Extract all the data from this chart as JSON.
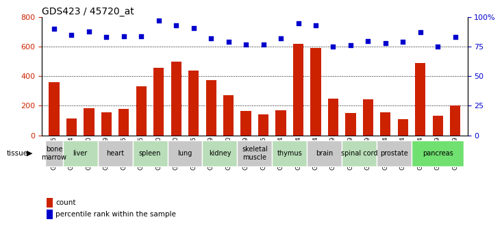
{
  "title": "GDS423 / 45720_at",
  "gsm_ids": [
    "GSM12635",
    "GSM12724",
    "GSM12640",
    "GSM12719",
    "GSM12645",
    "GSM12665",
    "GSM12650",
    "GSM12670",
    "GSM12655",
    "GSM12699",
    "GSM12660",
    "GSM12729",
    "GSM12675",
    "GSM12694",
    "GSM12684",
    "GSM12714",
    "GSM12689",
    "GSM12709",
    "GSM12679",
    "GSM12704",
    "GSM12734",
    "GSM12744",
    "GSM12739",
    "GSM12749"
  ],
  "counts": [
    360,
    115,
    185,
    155,
    180,
    330,
    455,
    500,
    440,
    375,
    270,
    165,
    140,
    170,
    620,
    590,
    250,
    150,
    245,
    155,
    110,
    490,
    130,
    200
  ],
  "percentiles": [
    90,
    85,
    88,
    83,
    84,
    84,
    97,
    93,
    91,
    82,
    79,
    77,
    77,
    82,
    95,
    93,
    75,
    76,
    80,
    78,
    79,
    87,
    75,
    83
  ],
  "tissues": [
    {
      "name": "bone\nmarrow",
      "count": 1,
      "color": "#c8c8c8"
    },
    {
      "name": "liver",
      "count": 2,
      "color": "#b8ddb8"
    },
    {
      "name": "heart",
      "count": 2,
      "color": "#c8c8c8"
    },
    {
      "name": "spleen",
      "count": 2,
      "color": "#b8ddb8"
    },
    {
      "name": "lung",
      "count": 2,
      "color": "#c8c8c8"
    },
    {
      "name": "kidney",
      "count": 2,
      "color": "#b8ddb8"
    },
    {
      "name": "skeletal\nmuscle",
      "count": 2,
      "color": "#c8c8c8"
    },
    {
      "name": "thymus",
      "count": 2,
      "color": "#b8ddb8"
    },
    {
      "name": "brain",
      "count": 2,
      "color": "#c8c8c8"
    },
    {
      "name": "spinal cord",
      "count": 2,
      "color": "#b8ddb8"
    },
    {
      "name": "prostate",
      "count": 2,
      "color": "#c8c8c8"
    },
    {
      "name": "pancreas",
      "count": 3,
      "color": "#70e070"
    }
  ],
  "bar_color": "#cc2200",
  "dot_color": "#0000cc",
  "left_ylim": [
    0,
    800
  ],
  "right_ylim": [
    0,
    100
  ],
  "left_yticks": [
    0,
    200,
    400,
    600,
    800
  ],
  "right_yticks": [
    0,
    25,
    50,
    75,
    100
  ],
  "right_yticklabels": [
    "0",
    "25",
    "50",
    "75",
    "100%"
  ],
  "grid_values": [
    200,
    400,
    600
  ],
  "bar_color_left": "#cc2200",
  "dot_color_blue": "#0000cc",
  "title_fontsize": 10,
  "tick_label_fontsize": 6.5,
  "tissue_fontsize": 7,
  "legend_fontsize": 7.5
}
